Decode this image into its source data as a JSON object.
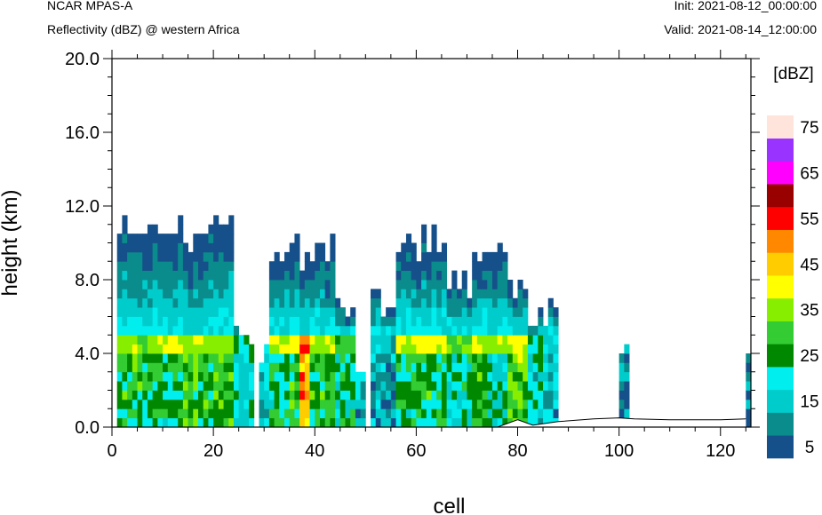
{
  "header": {
    "model": "NCAR MPAS-A",
    "field": "Reflectivity (dBZ) @ western Africa",
    "init": "Init: 2021-08-12_00:00:00",
    "valid": "Valid: 2021-08-14_12:00:00"
  },
  "chart_data": {
    "type": "heatmap",
    "title": "Reflectivity (dBZ) @ western Africa",
    "xlabel": "cell",
    "ylabel": "height (km)",
    "xlim": [
      0,
      126
    ],
    "ylim": [
      0,
      20
    ],
    "x_ticks": [
      "0",
      "20",
      "40",
      "60",
      "80",
      "100",
      "120"
    ],
    "y_ticks": [
      "0.0",
      "4.0",
      "8.0",
      "12.0",
      "16.0",
      "20.0"
    ],
    "colorbar": {
      "unit": "[dBZ]",
      "labels": [
        "5",
        "15",
        "25",
        "35",
        "45",
        "55",
        "65",
        "75"
      ],
      "levels": [
        5,
        10,
        15,
        20,
        25,
        30,
        35,
        40,
        45,
        50,
        55,
        60,
        65,
        70,
        75
      ],
      "colors": [
        "#16508a",
        "#0a8c8c",
        "#00cccc",
        "#00eeee",
        "#008800",
        "#33cc33",
        "#88ee00",
        "#ffff00",
        "#ffcc00",
        "#ff8800",
        "#ff0000",
        "#990000",
        "#ff00ff",
        "#9933ff",
        "#ffe4dc"
      ]
    },
    "terrain_km": [
      [
        76,
        0
      ],
      [
        80,
        0.4
      ],
      [
        83,
        0.1
      ],
      [
        88,
        0.3
      ],
      [
        95,
        0.45
      ],
      [
        100,
        0.5
      ],
      [
        103,
        0.45
      ],
      [
        110,
        0.4
      ],
      [
        120,
        0.4
      ],
      [
        125,
        0.45
      ]
    ],
    "columns": [
      {
        "start": 1,
        "end": 5,
        "top_km": 10.5,
        "core_dbz": 30,
        "melt_dbz": 38
      },
      {
        "start": 5,
        "end": 9,
        "top_km": 11.0,
        "core_dbz": 30,
        "melt_dbz": 36
      },
      {
        "start": 9,
        "end": 14,
        "top_km": 10.5,
        "core_dbz": 28,
        "melt_dbz": 40
      },
      {
        "start": 14,
        "end": 19,
        "top_km": 9.8,
        "core_dbz": 32,
        "melt_dbz": 38
      },
      {
        "start": 19,
        "end": 24,
        "top_km": 10.5,
        "core_dbz": 32,
        "melt_dbz": 38
      },
      {
        "start": 24,
        "end": 28,
        "top_km": 5.0,
        "core_dbz": 22,
        "melt_dbz": 25
      },
      {
        "start": 29,
        "end": 31,
        "top_km": 3.8,
        "core_dbz": 18,
        "melt_dbz": 18
      },
      {
        "start": 31,
        "end": 35,
        "top_km": 8.5,
        "core_dbz": 28,
        "melt_dbz": 40
      },
      {
        "start": 35,
        "end": 37,
        "top_km": 10.0,
        "core_dbz": 30,
        "melt_dbz": 42
      },
      {
        "start": 37,
        "end": 39,
        "top_km": 9.0,
        "core_dbz": 50,
        "melt_dbz": 55
      },
      {
        "start": 39,
        "end": 44,
        "top_km": 9.5,
        "core_dbz": 30,
        "melt_dbz": 38
      },
      {
        "start": 44,
        "end": 48,
        "top_km": 6.0,
        "core_dbz": 26,
        "melt_dbz": 30
      },
      {
        "start": 48,
        "end": 50,
        "top_km": 3.2,
        "core_dbz": 18,
        "melt_dbz": 18
      },
      {
        "start": 51,
        "end": 53,
        "top_km": 7.5,
        "core_dbz": 16,
        "melt_dbz": 18
      },
      {
        "start": 53,
        "end": 56,
        "top_km": 6.5,
        "core_dbz": 15,
        "melt_dbz": 15
      },
      {
        "start": 56,
        "end": 61,
        "top_km": 9.5,
        "core_dbz": 28,
        "melt_dbz": 40
      },
      {
        "start": 61,
        "end": 66,
        "top_km": 10.0,
        "core_dbz": 30,
        "melt_dbz": 42
      },
      {
        "start": 66,
        "end": 71,
        "top_km": 7.5,
        "core_dbz": 24,
        "melt_dbz": 35
      },
      {
        "start": 71,
        "end": 74,
        "top_km": 9.0,
        "core_dbz": 32,
        "melt_dbz": 40
      },
      {
        "start": 74,
        "end": 78,
        "top_km": 9.3,
        "core_dbz": 24,
        "melt_dbz": 38
      },
      {
        "start": 78,
        "end": 82,
        "top_km": 7.5,
        "core_dbz": 34,
        "melt_dbz": 42
      },
      {
        "start": 82,
        "end": 85,
        "top_km": 5.5,
        "core_dbz": 22,
        "melt_dbz": 25
      },
      {
        "start": 85,
        "end": 88,
        "top_km": 6.0,
        "core_dbz": 18,
        "melt_dbz": 20
      },
      {
        "start": 100,
        "end": 102,
        "top_km": 4.2,
        "core_dbz": 13,
        "melt_dbz": 13
      },
      {
        "start": 125,
        "end": 126,
        "top_km": 4.5,
        "core_dbz": 13,
        "melt_dbz": 13
      }
    ]
  }
}
